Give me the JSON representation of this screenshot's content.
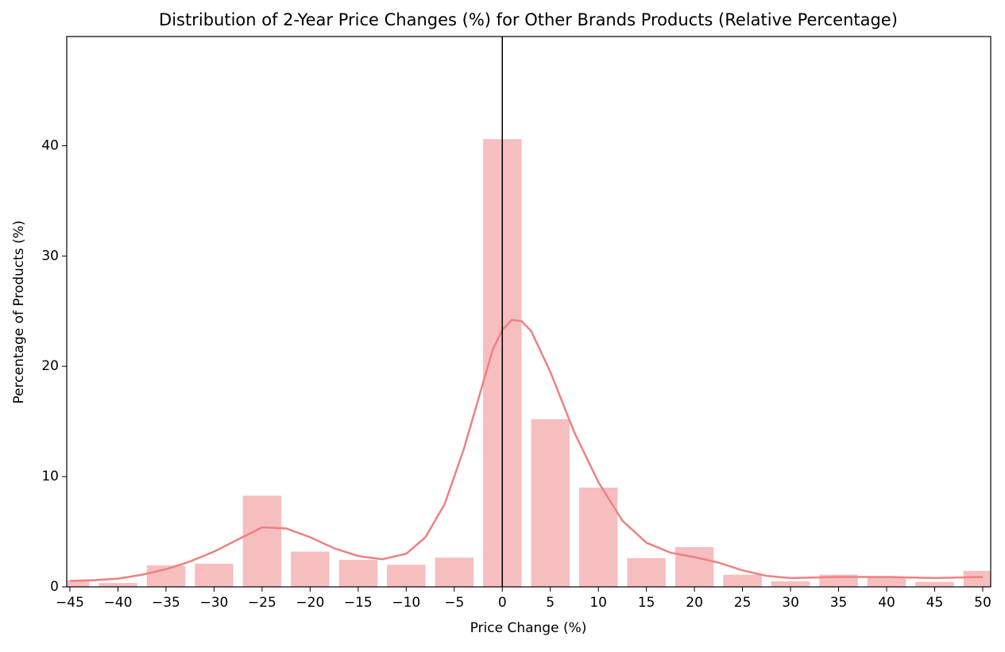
{
  "chart_data": {
    "type": "histogram",
    "title": "Distribution of 2-Year Price Changes (%) for Other Brands Products (Relative Percentage)",
    "x_label": "Price Change (%)",
    "y_label": "Percentage of Products (%)",
    "bins": [
      -47.5,
      -42.5,
      -37.5,
      -32.5,
      -27.5,
      -22.5,
      -17.5,
      -12.5,
      -7.5,
      -2.5,
      2.5,
      7.5,
      12.5,
      17.5,
      22.5,
      27.5,
      32.5,
      37.5,
      42.5,
      47.5,
      52.5
    ],
    "values": [
      0.6,
      0.35,
      1.95,
      2.1,
      8.27,
      3.2,
      2.45,
      2.0,
      2.65,
      40.6,
      15.2,
      9.0,
      2.6,
      3.6,
      1.1,
      0.5,
      1.1,
      0.9,
      0.45,
      1.45
    ],
    "color": "#f7bebf",
    "kde": {
      "color": "#f08080",
      "x": [
        -45,
        -42.5,
        -40,
        -37.5,
        -35,
        -32.5,
        -30,
        -27.5,
        -25,
        -22.5,
        -20,
        -17.5,
        -15,
        -12.5,
        -10,
        -8,
        -6,
        -4,
        -2,
        -1,
        0,
        1,
        2,
        3,
        5,
        7.5,
        10,
        12.5,
        15,
        17.5,
        20,
        22.5,
        25,
        27.5,
        30,
        35,
        40,
        45,
        50
      ],
      "y": [
        0.55,
        0.6,
        0.75,
        1.1,
        1.6,
        2.3,
        3.2,
        4.3,
        5.4,
        5.3,
        4.5,
        3.5,
        2.8,
        2.5,
        3.0,
        4.5,
        7.5,
        12.5,
        18.5,
        21.5,
        23.3,
        24.2,
        24.1,
        23.2,
        19.5,
        14.0,
        9.5,
        6.0,
        4.0,
        3.1,
        2.7,
        2.2,
        1.5,
        1.0,
        0.8,
        0.9,
        0.9,
        0.8,
        0.9
      ]
    },
    "vline": 0,
    "xlim": [
      -45.33,
      50.83
    ],
    "ylim": [
      0,
      49.9
    ],
    "xticks": [
      {
        "value": -45,
        "label": "−45"
      },
      {
        "value": -40,
        "label": "−40"
      },
      {
        "value": -35,
        "label": "−35"
      },
      {
        "value": -30,
        "label": "−30"
      },
      {
        "value": -25,
        "label": "−25"
      },
      {
        "value": -20,
        "label": "−20"
      },
      {
        "value": -15,
        "label": "−15"
      },
      {
        "value": -10,
        "label": "−10"
      },
      {
        "value": -5,
        "label": "−5"
      },
      0,
      5,
      10,
      15,
      20,
      25,
      30,
      35,
      40,
      45,
      50
    ],
    "yticks": [
      0,
      10,
      20,
      30,
      40
    ]
  }
}
